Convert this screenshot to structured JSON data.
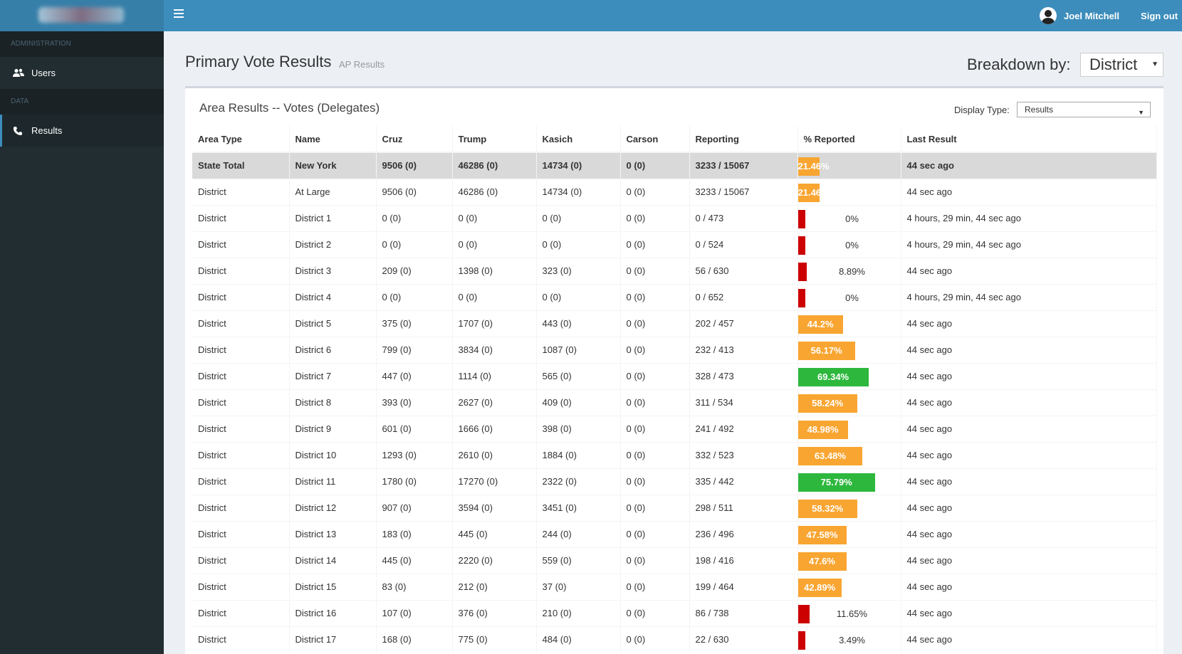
{
  "header": {
    "user_name": "Joel Mitchell",
    "signout_label": "Sign out"
  },
  "sidebar": {
    "sections": [
      {
        "label": "ADMINISTRATION",
        "items": [
          {
            "label": "Users",
            "icon": "users-icon"
          }
        ]
      },
      {
        "label": "DATA",
        "items": [
          {
            "label": "Results",
            "icon": "phone-icon"
          }
        ]
      }
    ]
  },
  "page": {
    "title": "Primary Vote Results",
    "subtitle": "AP Results",
    "breakdown_label": "Breakdown by:",
    "breakdown_value": "District"
  },
  "box": {
    "title": "Area Results -- Votes (Delegates)",
    "display_label": "Display Type:",
    "display_value": "Results"
  },
  "colors": {
    "red": "#cc0000",
    "orange": "#f9a531",
    "green": "#2db83d"
  },
  "table": {
    "columns": [
      "Area Type",
      "Name",
      "Cruz",
      "Trump",
      "Kasich",
      "Carson",
      "Reporting",
      "% Reported",
      "Last Result"
    ],
    "rows": [
      {
        "area_type": "State Total",
        "name": "New York",
        "cruz": "9506 (0)",
        "trump": "46286 (0)",
        "kasich": "14734 (0)",
        "carson": "0 (0)",
        "reporting": "3233 / 15067",
        "pct_label": "21.46%",
        "pct": 21.46,
        "last_result": "44 sec ago"
      },
      {
        "area_type": "District",
        "name": "At Large",
        "cruz": "9506 (0)",
        "trump": "46286 (0)",
        "kasich": "14734 (0)",
        "carson": "0 (0)",
        "reporting": "3233 / 15067",
        "pct_label": "21.46%",
        "pct": 21.46,
        "last_result": "44 sec ago"
      },
      {
        "area_type": "District",
        "name": "District 1",
        "cruz": "0 (0)",
        "trump": "0 (0)",
        "kasich": "0 (0)",
        "carson": "0 (0)",
        "reporting": "0 / 473",
        "pct_label": "0%",
        "pct": 0,
        "last_result": "4 hours, 29 min, 44 sec ago"
      },
      {
        "area_type": "District",
        "name": "District 2",
        "cruz": "0 (0)",
        "trump": "0 (0)",
        "kasich": "0 (0)",
        "carson": "0 (0)",
        "reporting": "0 / 524",
        "pct_label": "0%",
        "pct": 0,
        "last_result": "4 hours, 29 min, 44 sec ago"
      },
      {
        "area_type": "District",
        "name": "District 3",
        "cruz": "209 (0)",
        "trump": "1398 (0)",
        "kasich": "323 (0)",
        "carson": "0 (0)",
        "reporting": "56 / 630",
        "pct_label": "8.89%",
        "pct": 8.89,
        "last_result": "44 sec ago"
      },
      {
        "area_type": "District",
        "name": "District 4",
        "cruz": "0 (0)",
        "trump": "0 (0)",
        "kasich": "0 (0)",
        "carson": "0 (0)",
        "reporting": "0 / 652",
        "pct_label": "0%",
        "pct": 0,
        "last_result": "4 hours, 29 min, 44 sec ago"
      },
      {
        "area_type": "District",
        "name": "District 5",
        "cruz": "375 (0)",
        "trump": "1707 (0)",
        "kasich": "443 (0)",
        "carson": "0 (0)",
        "reporting": "202 / 457",
        "pct_label": "44.2%",
        "pct": 44.2,
        "last_result": "44 sec ago"
      },
      {
        "area_type": "District",
        "name": "District 6",
        "cruz": "799 (0)",
        "trump": "3834 (0)",
        "kasich": "1087 (0)",
        "carson": "0 (0)",
        "reporting": "232 / 413",
        "pct_label": "56.17%",
        "pct": 56.17,
        "last_result": "44 sec ago"
      },
      {
        "area_type": "District",
        "name": "District 7",
        "cruz": "447 (0)",
        "trump": "1114 (0)",
        "kasich": "565 (0)",
        "carson": "0 (0)",
        "reporting": "328 / 473",
        "pct_label": "69.34%",
        "pct": 69.34,
        "last_result": "44 sec ago"
      },
      {
        "area_type": "District",
        "name": "District 8",
        "cruz": "393 (0)",
        "trump": "2627 (0)",
        "kasich": "409 (0)",
        "carson": "0 (0)",
        "reporting": "311 / 534",
        "pct_label": "58.24%",
        "pct": 58.24,
        "last_result": "44 sec ago"
      },
      {
        "area_type": "District",
        "name": "District 9",
        "cruz": "601 (0)",
        "trump": "1666 (0)",
        "kasich": "398 (0)",
        "carson": "0 (0)",
        "reporting": "241 / 492",
        "pct_label": "48.98%",
        "pct": 48.98,
        "last_result": "44 sec ago"
      },
      {
        "area_type": "District",
        "name": "District 10",
        "cruz": "1293 (0)",
        "trump": "2610 (0)",
        "kasich": "1884 (0)",
        "carson": "0 (0)",
        "reporting": "332 / 523",
        "pct_label": "63.48%",
        "pct": 63.48,
        "last_result": "44 sec ago"
      },
      {
        "area_type": "District",
        "name": "District 11",
        "cruz": "1780 (0)",
        "trump": "17270 (0)",
        "kasich": "2322 (0)",
        "carson": "0 (0)",
        "reporting": "335 / 442",
        "pct_label": "75.79%",
        "pct": 75.79,
        "last_result": "44 sec ago"
      },
      {
        "area_type": "District",
        "name": "District 12",
        "cruz": "907 (0)",
        "trump": "3594 (0)",
        "kasich": "3451 (0)",
        "carson": "0 (0)",
        "reporting": "298 / 511",
        "pct_label": "58.32%",
        "pct": 58.32,
        "last_result": "44 sec ago"
      },
      {
        "area_type": "District",
        "name": "District 13",
        "cruz": "183 (0)",
        "trump": "445 (0)",
        "kasich": "244 (0)",
        "carson": "0 (0)",
        "reporting": "236 / 496",
        "pct_label": "47.58%",
        "pct": 47.58,
        "last_result": "44 sec ago"
      },
      {
        "area_type": "District",
        "name": "District 14",
        "cruz": "445 (0)",
        "trump": "2220 (0)",
        "kasich": "559 (0)",
        "carson": "0 (0)",
        "reporting": "198 / 416",
        "pct_label": "47.6%",
        "pct": 47.6,
        "last_result": "44 sec ago"
      },
      {
        "area_type": "District",
        "name": "District 15",
        "cruz": "83 (0)",
        "trump": "212 (0)",
        "kasich": "37 (0)",
        "carson": "0 (0)",
        "reporting": "199 / 464",
        "pct_label": "42.89%",
        "pct": 42.89,
        "last_result": "44 sec ago"
      },
      {
        "area_type": "District",
        "name": "District 16",
        "cruz": "107 (0)",
        "trump": "376 (0)",
        "kasich": "210 (0)",
        "carson": "0 (0)",
        "reporting": "86 / 738",
        "pct_label": "11.65%",
        "pct": 11.65,
        "last_result": "44 sec ago"
      },
      {
        "area_type": "District",
        "name": "District 17",
        "cruz": "168 (0)",
        "trump": "775 (0)",
        "kasich": "484 (0)",
        "carson": "0 (0)",
        "reporting": "22 / 630",
        "pct_label": "3.49%",
        "pct": 3.49,
        "last_result": "44 sec ago"
      }
    ]
  }
}
